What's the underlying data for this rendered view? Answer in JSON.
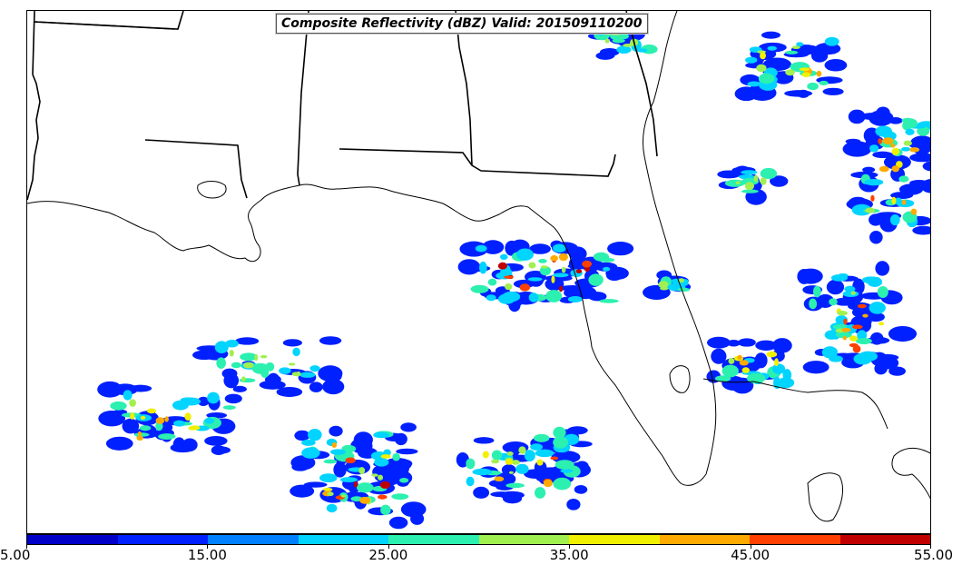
{
  "title": "Composite Reflectivity (dBZ) Valid: 201509110200",
  "colorbar": {
    "labels": [
      "5.00",
      "15.00",
      "25.00",
      "35.00",
      "45.00",
      "55.00"
    ],
    "colors": [
      "#0000c8",
      "#0020ff",
      "#0080ff",
      "#00d4ff",
      "#2cf0b0",
      "#a0f050",
      "#f0f000",
      "#ffaa00",
      "#ff4000",
      "#c00000"
    ]
  },
  "legend_scale": {
    "min": 5,
    "max": 55,
    "step": 5,
    "unit": "dBZ"
  }
}
